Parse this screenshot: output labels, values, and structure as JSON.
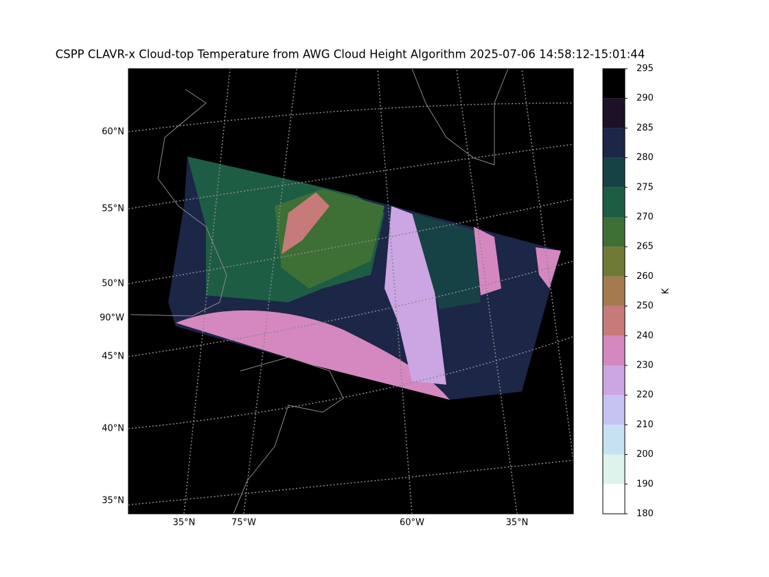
{
  "title": "CSPP CLAVR-x Cloud-top Temperature from AWG Cloud Height Algorithm 2025-07-06 14:58:12-15:01:44",
  "map": {
    "lat_labels": [
      "60°N",
      "55°N",
      "50°N",
      "90°W",
      "45°N",
      "40°N",
      "35°N"
    ],
    "lon_labels": [
      "35°N",
      "75°W",
      "60°W",
      "35°N"
    ]
  },
  "colorbar": {
    "label": "K",
    "boundaries": [
      180,
      190,
      200,
      210,
      220,
      230,
      240,
      250,
      260,
      265,
      270,
      275,
      280,
      285,
      290,
      295
    ],
    "colors": [
      "#ffffff",
      "#ddf3ec",
      "#c6e2f2",
      "#c6c3f2",
      "#cca5e3",
      "#d587c0",
      "#c77a7a",
      "#a47a4e",
      "#6f7a35",
      "#3e7036",
      "#1d5d44",
      "#164245",
      "#1c2647",
      "#1c1127",
      "#000000"
    ]
  }
}
